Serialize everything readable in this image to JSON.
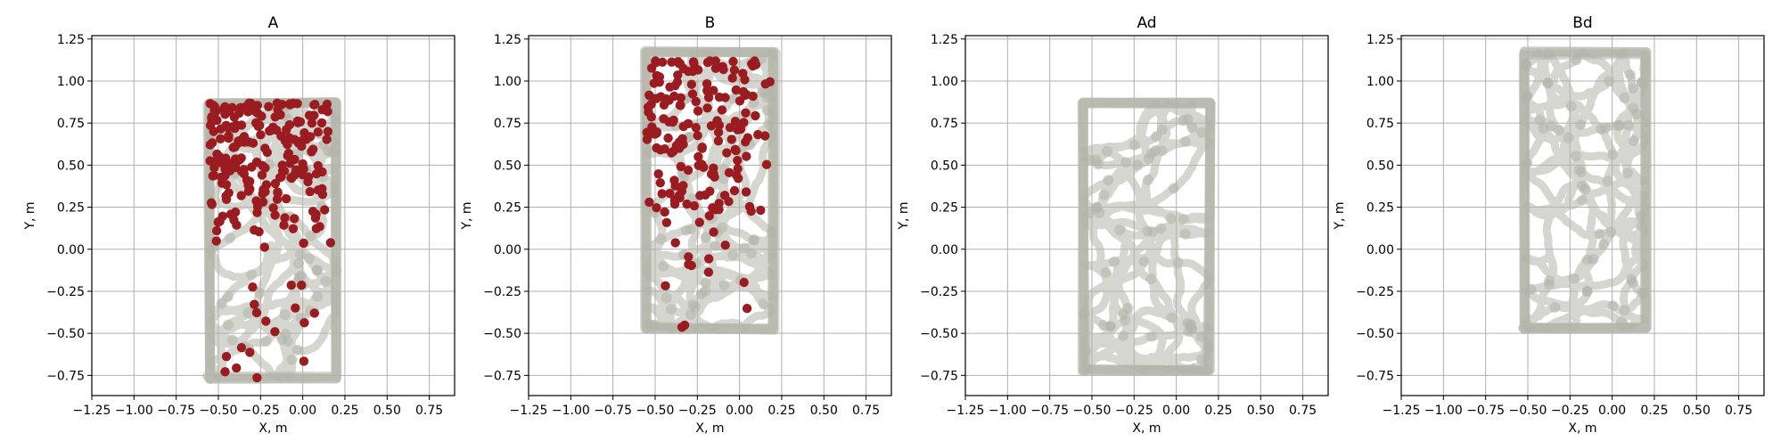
{
  "figure": {
    "background": "#ffffff"
  },
  "colors": {
    "trajectory": "#b2b5aa",
    "highlight": "#9b1c20",
    "grid": "#b0b0b0"
  },
  "chart_data": [
    {
      "type": "scatter",
      "title": "A",
      "xlabel": "X, m",
      "ylabel": "Y, m",
      "xlim": [
        -1.25,
        0.9
      ],
      "ylim": [
        -0.87,
        1.27
      ],
      "xticks": [
        "−1.25",
        "−1.00",
        "−0.75",
        "−0.50",
        "−0.25",
        "0.00",
        "0.25",
        "0.50",
        "0.75"
      ],
      "yticks": [
        "−0.75",
        "−0.50",
        "−0.25",
        "0.00",
        "0.25",
        "0.50",
        "0.75",
        "1.00",
        "1.25"
      ],
      "grid": true,
      "region": {
        "x": [
          -0.55,
          0.2
        ],
        "y": [
          -0.77,
          0.87
        ]
      },
      "series": [
        {
          "kind": "trajectory",
          "color": "#b2b5aa",
          "points": 900
        },
        {
          "kind": "highlight",
          "color": "#9b1c20",
          "points": 230,
          "concentration": {
            "x": [
              -0.55,
              0.15
            ],
            "y": [
              0.1,
              0.87
            ]
          }
        }
      ]
    },
    {
      "type": "scatter",
      "title": "B",
      "xlabel": "X, m",
      "ylabel": "Y, m",
      "xlim": [
        -1.25,
        0.9
      ],
      "ylim": [
        -0.87,
        1.27
      ],
      "xticks": [
        "−1.25",
        "−1.00",
        "−0.75",
        "−0.50",
        "−0.25",
        "0.00",
        "0.25",
        "0.50",
        "0.75"
      ],
      "yticks": [
        "−0.75",
        "−0.50",
        "−0.25",
        "0.00",
        "0.25",
        "0.50",
        "0.75",
        "1.00",
        "1.25"
      ],
      "grid": true,
      "region": {
        "x": [
          -0.55,
          0.2
        ],
        "y": [
          -0.47,
          1.17
        ]
      },
      "series": [
        {
          "kind": "trajectory",
          "color": "#b2b5aa",
          "points": 900
        },
        {
          "kind": "highlight",
          "color": "#9b1c20",
          "points": 190,
          "concentration": {
            "x": [
              -0.55,
              0.1
            ],
            "y": [
              0.2,
              1.12
            ]
          }
        }
      ]
    },
    {
      "type": "scatter",
      "title": "Ad",
      "xlabel": "X, m",
      "ylabel": "Y, m",
      "xlim": [
        -1.25,
        0.9
      ],
      "ylim": [
        -0.87,
        1.27
      ],
      "xticks": [
        "−1.25",
        "−1.00",
        "−0.75",
        "−0.50",
        "−0.25",
        "0.00",
        "0.25",
        "0.50",
        "0.75"
      ],
      "yticks": [
        "−0.75",
        "−0.50",
        "−0.25",
        "0.00",
        "0.25",
        "0.50",
        "0.75",
        "1.00",
        "1.25"
      ],
      "grid": true,
      "region": {
        "x": [
          -0.55,
          0.2
        ],
        "y": [
          -0.72,
          0.87
        ]
      },
      "series": [
        {
          "kind": "trajectory",
          "color": "#b2b5aa",
          "points": 900
        }
      ]
    },
    {
      "type": "scatter",
      "title": "Bd",
      "xlabel": "X, m",
      "ylabel": "Y, m",
      "xlim": [
        -1.25,
        0.9
      ],
      "ylim": [
        -0.87,
        1.27
      ],
      "xticks": [
        "−1.25",
        "−1.00",
        "−0.75",
        "−0.50",
        "−0.25",
        "0.00",
        "0.25",
        "0.50",
        "0.75"
      ],
      "yticks": [
        "−0.75",
        "−0.50",
        "−0.25",
        "0.00",
        "0.25",
        "0.50",
        "0.75",
        "1.00",
        "1.25"
      ],
      "grid": true,
      "region": {
        "x": [
          -0.52,
          0.2
        ],
        "y": [
          -0.47,
          1.17
        ]
      },
      "series": [
        {
          "kind": "trajectory",
          "color": "#b2b5aa",
          "points": 900
        }
      ]
    }
  ]
}
